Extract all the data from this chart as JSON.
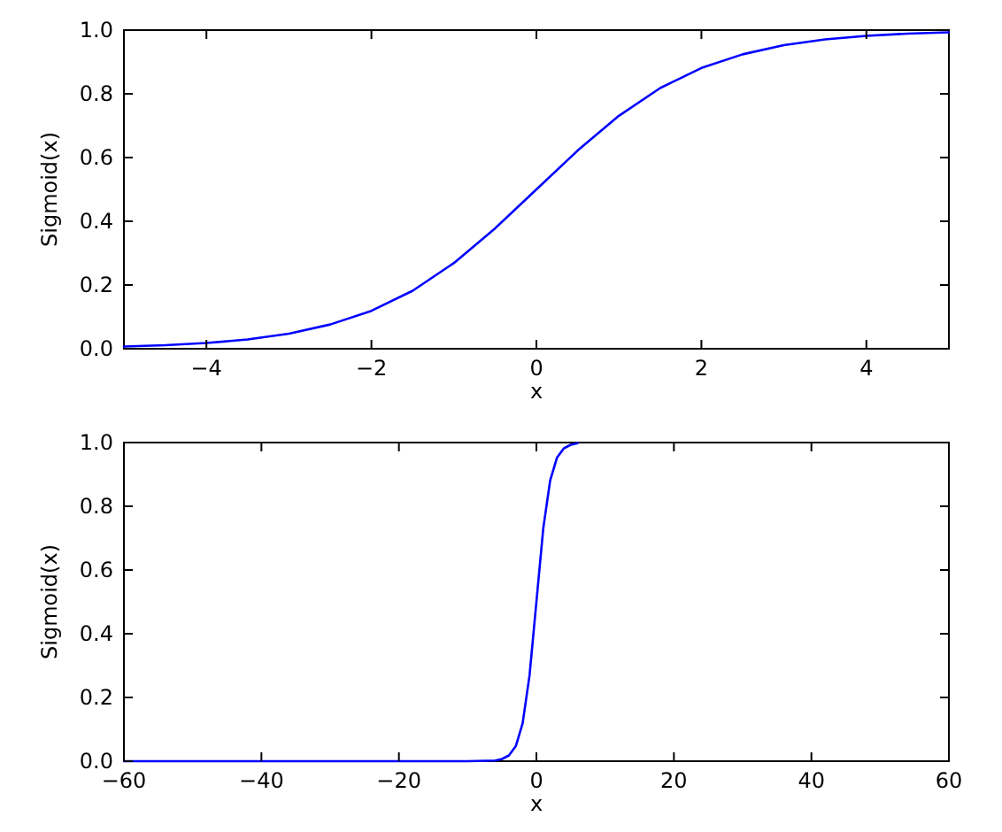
{
  "chart_data": [
    {
      "type": "line",
      "xlabel": "x",
      "ylabel": "Sigmoid(x)",
      "xlim": [
        -5,
        5
      ],
      "ylim": [
        0,
        1
      ],
      "xticks": [
        {
          "value": -4,
          "label": "−4"
        },
        {
          "value": -2,
          "label": "−2"
        },
        0,
        2,
        4
      ],
      "yticks": [
        {
          "value": 0,
          "label": "0.0"
        },
        {
          "value": 0.2,
          "label": "0.2"
        },
        {
          "value": 0.4,
          "label": "0.4"
        },
        {
          "value": 0.6,
          "label": "0.6"
        },
        {
          "value": 0.8,
          "label": "0.8"
        },
        {
          "value": 1,
          "label": "1.0"
        }
      ],
      "x": [
        -5,
        -4.5,
        -4,
        -3.5,
        -3,
        -2.5,
        -2,
        -1.5,
        -1,
        -0.5,
        0,
        0.5,
        1,
        1.5,
        2,
        2.5,
        3,
        3.5,
        4,
        4.5,
        5
      ],
      "series": [
        {
          "color": "#0000ff",
          "values": [
            0.007,
            0.011,
            0.018,
            0.029,
            0.047,
            0.076,
            0.119,
            0.182,
            0.269,
            0.378,
            0.5,
            0.622,
            0.731,
            0.818,
            0.881,
            0.924,
            0.953,
            0.971,
            0.982,
            0.989,
            0.993
          ]
        }
      ]
    },
    {
      "type": "line",
      "xlabel": "x",
      "ylabel": "Sigmoid(x)",
      "xlim": [
        -60,
        60
      ],
      "ylim": [
        0,
        1
      ],
      "xticks": [
        {
          "value": -60,
          "label": "−60"
        },
        {
          "value": -40,
          "label": "−40"
        },
        {
          "value": -20,
          "label": "−20"
        },
        0,
        20,
        40,
        60
      ],
      "yticks": [
        {
          "value": 0,
          "label": "0.0"
        },
        {
          "value": 0.2,
          "label": "0.2"
        },
        {
          "value": 0.4,
          "label": "0.4"
        },
        {
          "value": 0.6,
          "label": "0.6"
        },
        {
          "value": 0.8,
          "label": "0.8"
        },
        {
          "value": 1,
          "label": "1.0"
        }
      ],
      "x": [
        -60,
        -40,
        -20,
        -10,
        -6,
        -5,
        -4,
        -3,
        -2,
        -1,
        0,
        1,
        2,
        3,
        4,
        5,
        6
      ],
      "series": [
        {
          "color": "#0000ff",
          "values": [
            0,
            0,
            0,
            0,
            0.002,
            0.007,
            0.018,
            0.047,
            0.119,
            0.269,
            0.5,
            0.731,
            0.881,
            0.953,
            0.982,
            0.993,
            0.998
          ]
        }
      ]
    }
  ]
}
